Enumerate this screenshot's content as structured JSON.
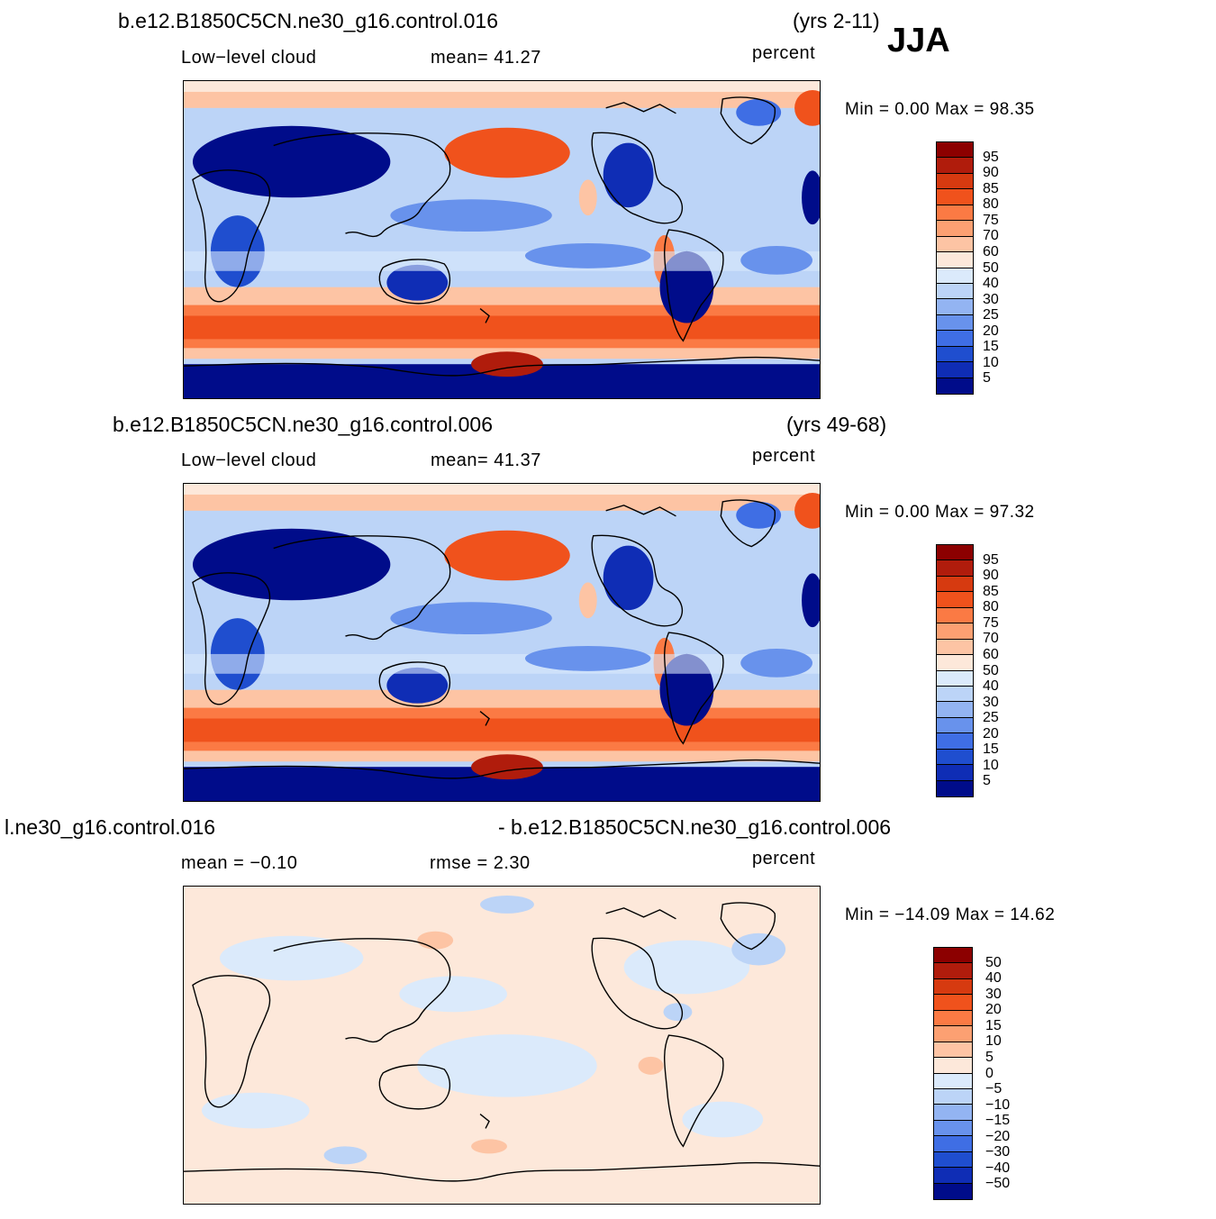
{
  "season": "JJA",
  "panels": [
    {
      "case": "b.e12.B1850C5CN.ne30_g16.control.016",
      "years": "(yrs 2-11)",
      "variable": "Low−level  cloud",
      "stat1": "mean=   41.27",
      "stat2": "",
      "units": "percent",
      "minmax": "Min  =      0.00  Max  =    98.35",
      "type": "field"
    },
    {
      "case": "b.e12.B1850C5CN.ne30_g16.control.006",
      "years": "(yrs 49-68)",
      "variable": "Low−level  cloud",
      "stat1": "mean=   41.37",
      "stat2": "",
      "units": "percent",
      "minmax": "Min  =      0.00  Max  =    97.32",
      "type": "field"
    },
    {
      "case": "l.ne30_g16.control.016",
      "years": "- b.e12.B1850C5CN.ne30_g16.control.006",
      "variable": "",
      "stat1": "mean  =    −0.10",
      "stat2": "rmse  =     2.30",
      "units": "percent",
      "minmax": "Min  =  −14.09  Max  =     14.62",
      "type": "diff"
    }
  ],
  "colorbar_field": {
    "labels": [
      "95",
      "90",
      "85",
      "80",
      "75",
      "70",
      "60",
      "50",
      "40",
      "30",
      "25",
      "20",
      "15",
      "10",
      "5"
    ],
    "colors": [
      "#8c0000",
      "#b01c0c",
      "#d63a10",
      "#f0521c",
      "#fb7a44",
      "#fca072",
      "#fdc4a4",
      "#fde8da",
      "#dbeafb",
      "#bcd4f7",
      "#93b4f2",
      "#6892ec",
      "#3f6ee4",
      "#1f4ecf",
      "#0f2db5",
      "#000c8a"
    ]
  },
  "colorbar_diff": {
    "labels": [
      "50",
      "40",
      "30",
      "20",
      "15",
      "10",
      "5",
      "0",
      "−5",
      "−10",
      "−15",
      "−20",
      "−30",
      "−40",
      "−50"
    ],
    "colors": [
      "#8c0000",
      "#b01c0c",
      "#d63a10",
      "#f0521c",
      "#fb7a44",
      "#fca072",
      "#fdc4a4",
      "#fde8da",
      "#dbeafb",
      "#bcd4f7",
      "#93b4f2",
      "#6892ec",
      "#3f6ee4",
      "#1f4ecf",
      "#0f2db5",
      "#000c8a"
    ]
  }
}
